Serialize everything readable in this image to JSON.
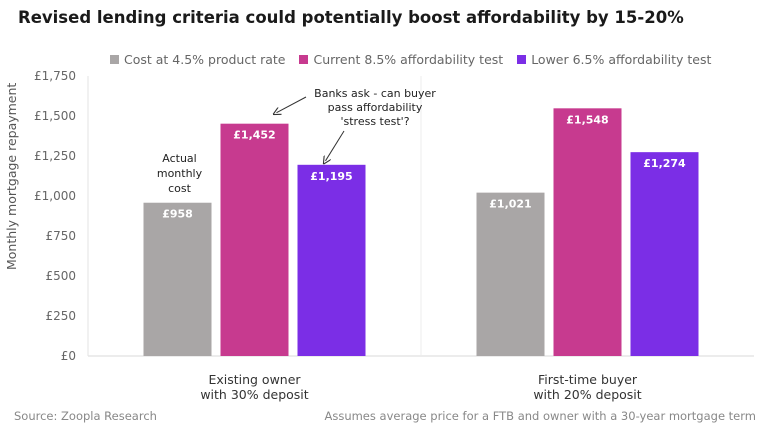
{
  "title": "Revised lending criteria could potentially boost affordability by 15-20%",
  "source": "Source: Zoopla Research",
  "footnote": "Assumes average price for a FTB and owner with a 30-year mortgage term",
  "chart_data": {
    "type": "bar",
    "ylabel": "Monthly mortgage repayment",
    "ylim": [
      0,
      1750
    ],
    "yticks": [
      0,
      250,
      500,
      750,
      1000,
      1250,
      1500,
      1750
    ],
    "ytick_labels": [
      "£0",
      "£250",
      "£500",
      "£750",
      "£1,000",
      "£1,250",
      "£1,500",
      "£1,750"
    ],
    "categories": [
      [
        "Existing owner",
        "with 30% deposit"
      ],
      [
        "First-time buyer",
        "with 20% deposit"
      ]
    ],
    "series": [
      {
        "name": "Cost at 4.5% product rate",
        "color": "#a9a6a6",
        "values": [
          958,
          1021
        ],
        "labels": [
          "£958",
          "£1,021"
        ]
      },
      {
        "name": "Current 8.5% affordability test",
        "color": "#c73a8f",
        "values": [
          1452,
          1548
        ],
        "labels": [
          "£1,452",
          "£1,548"
        ]
      },
      {
        "name": "Lower 6.5% affordability test",
        "color": "#7b2ee6",
        "values": [
          1195,
          1274
        ],
        "labels": [
          "£1,195",
          "£1,274"
        ]
      }
    ],
    "legend_position": "top",
    "grid": false,
    "annotations": [
      {
        "lines": [
          "Actual",
          "monthly",
          "cost"
        ]
      },
      {
        "lines": [
          "Banks ask - can buyer",
          "pass affordability",
          "'stress test'?"
        ]
      }
    ]
  }
}
